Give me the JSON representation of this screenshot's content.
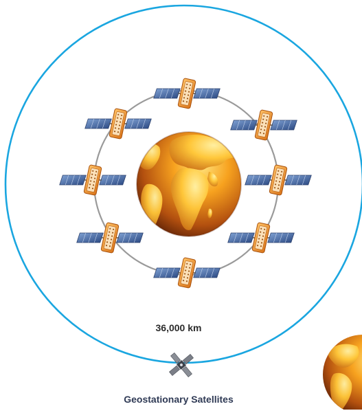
{
  "diagram": {
    "distance_label": "36,000 km",
    "caption": "Geostationary Satellites",
    "colors": {
      "outer_orbit": "#1aa6e0",
      "inner_orbit": "#9a9a9a",
      "earth_light": "#ffd040",
      "earth_dark": "#6e2a08",
      "satellite_body": "#f39a2b",
      "solar_panel": "#4a6fa8"
    },
    "icons": {
      "earth": "earth-globe-icon",
      "satellite": "satellite-icon",
      "geostationary_satellite": "small-satellite-icon"
    },
    "inner_satellite_count": 8
  }
}
